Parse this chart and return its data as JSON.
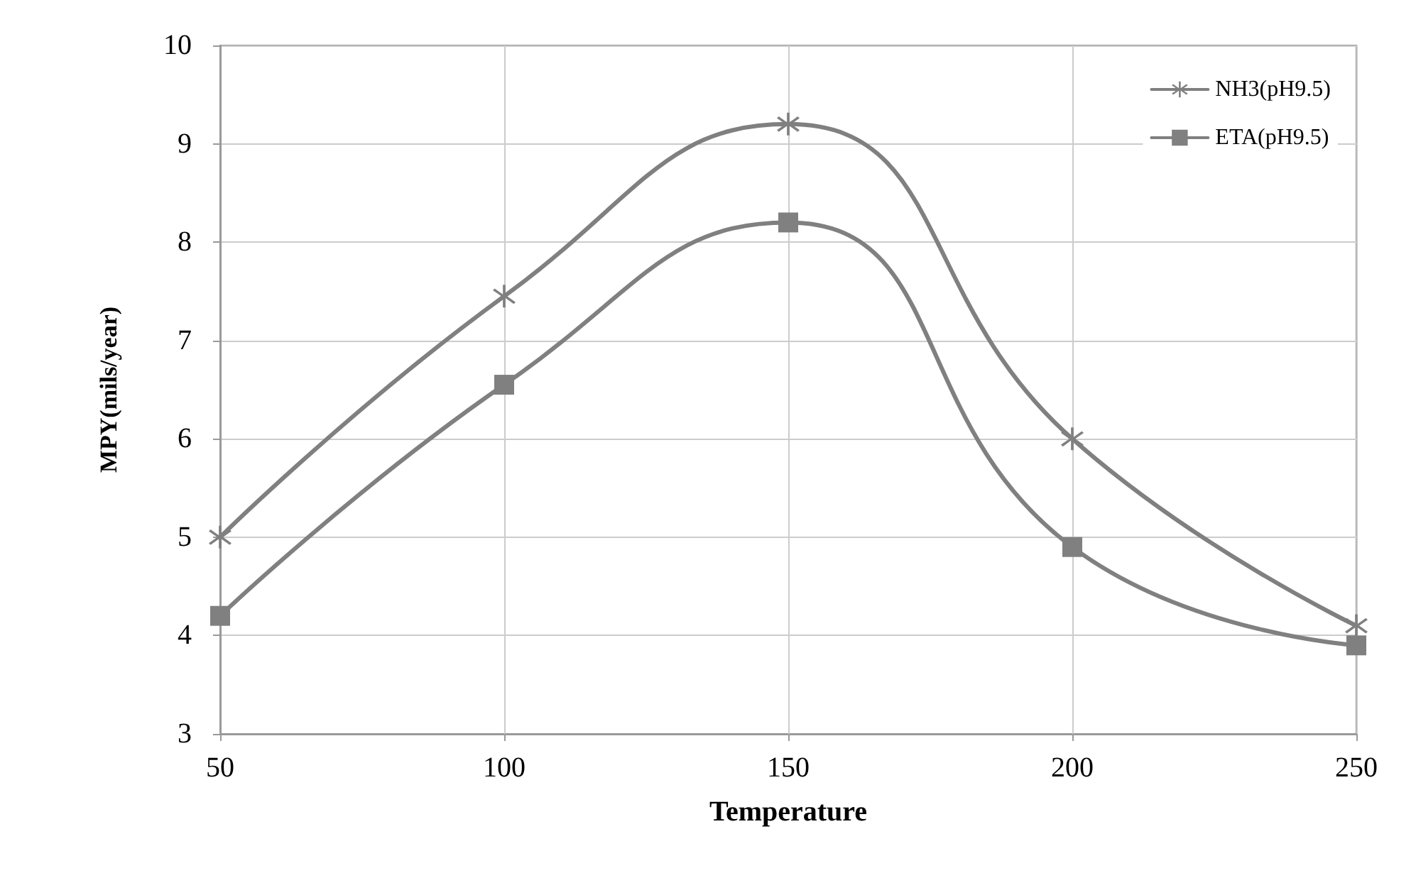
{
  "chart_data": {
    "type": "line",
    "xlabel": "Temperature",
    "ylabel": "MPY(mils/year)",
    "x": [
      50,
      100,
      150,
      200,
      250
    ],
    "series": [
      {
        "name": "NH3(pH9.5)",
        "color": "#808080",
        "marker": "star",
        "values": [
          5.0,
          7.45,
          9.2,
          6.0,
          4.1
        ]
      },
      {
        "name": "ETA(pH9.5)",
        "color": "#808080",
        "marker": "square",
        "values": [
          4.2,
          6.55,
          8.2,
          4.9,
          3.9
        ]
      }
    ],
    "xlim": [
      50,
      250
    ],
    "xticks": [
      50,
      100,
      150,
      200,
      250
    ],
    "ylim": [
      3,
      10
    ],
    "yticks": [
      3,
      4,
      5,
      6,
      7,
      8,
      9,
      10
    ],
    "grid": true,
    "legend": "top right"
  }
}
